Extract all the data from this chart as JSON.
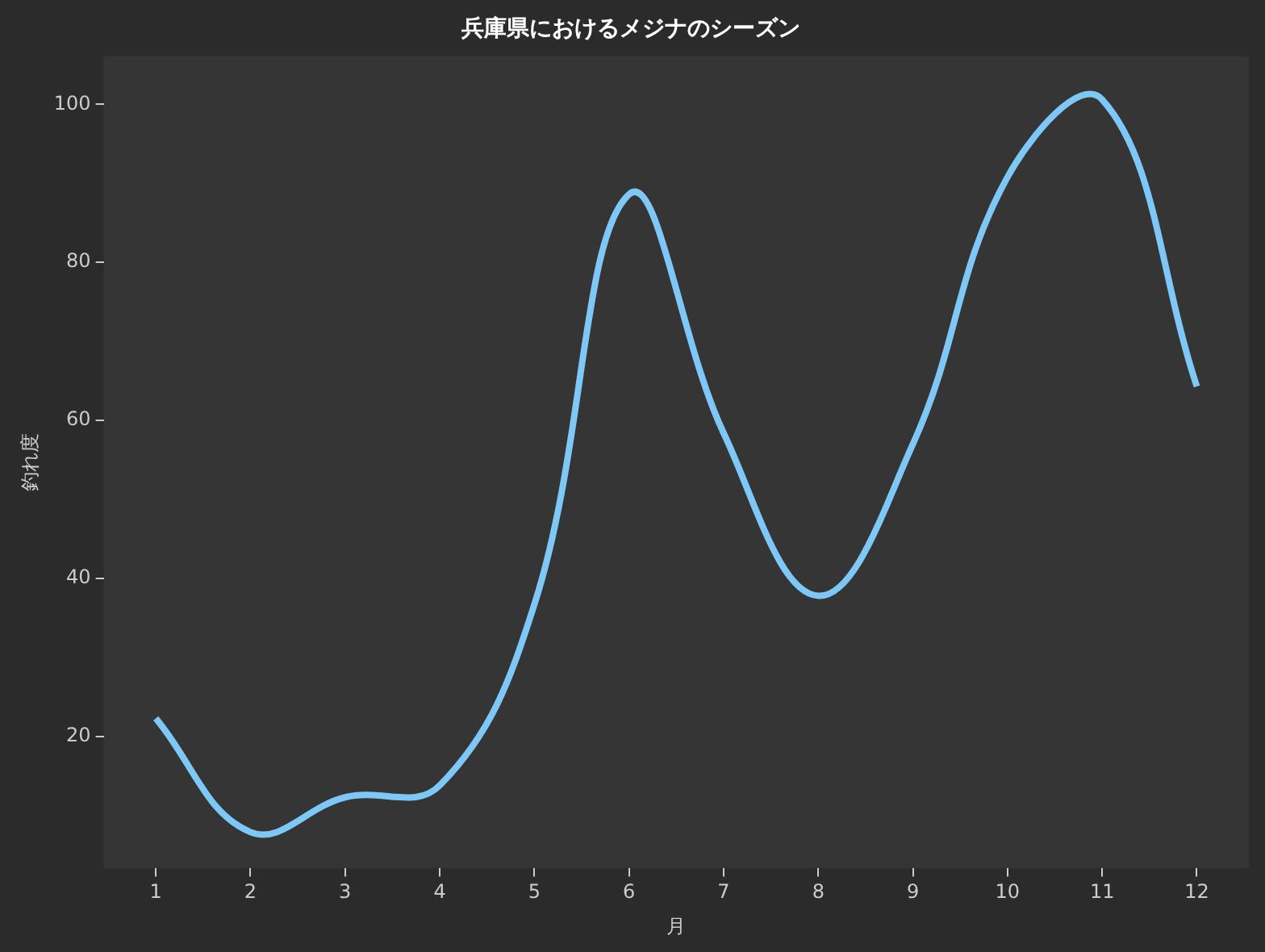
{
  "chart_data": {
    "type": "line",
    "title": "兵庫県におけるメジナのシーズン",
    "xlabel": "月",
    "ylabel": "釣れ度",
    "x": [
      1,
      2,
      3,
      4,
      5,
      6,
      7,
      8,
      9,
      10,
      11,
      12
    ],
    "series": [
      {
        "color": "#7ec8f8",
        "values": [
          22.3,
          7.9,
          12.3,
          13.8,
          36.7,
          88.6,
          58.4,
          37.8,
          57,
          90.8,
          100.6,
          64.3
        ]
      }
    ],
    "xlim": [
      0.45,
      12.55
    ],
    "xticks": [
      1,
      2,
      3,
      4,
      5,
      6,
      7,
      8,
      9,
      10,
      11,
      12
    ],
    "ylim": [
      3.3,
      106.1
    ],
    "yticks": [
      20,
      40,
      60,
      80,
      100
    ],
    "grid": false,
    "legend": false,
    "marker": "none",
    "line_style": "solid"
  }
}
